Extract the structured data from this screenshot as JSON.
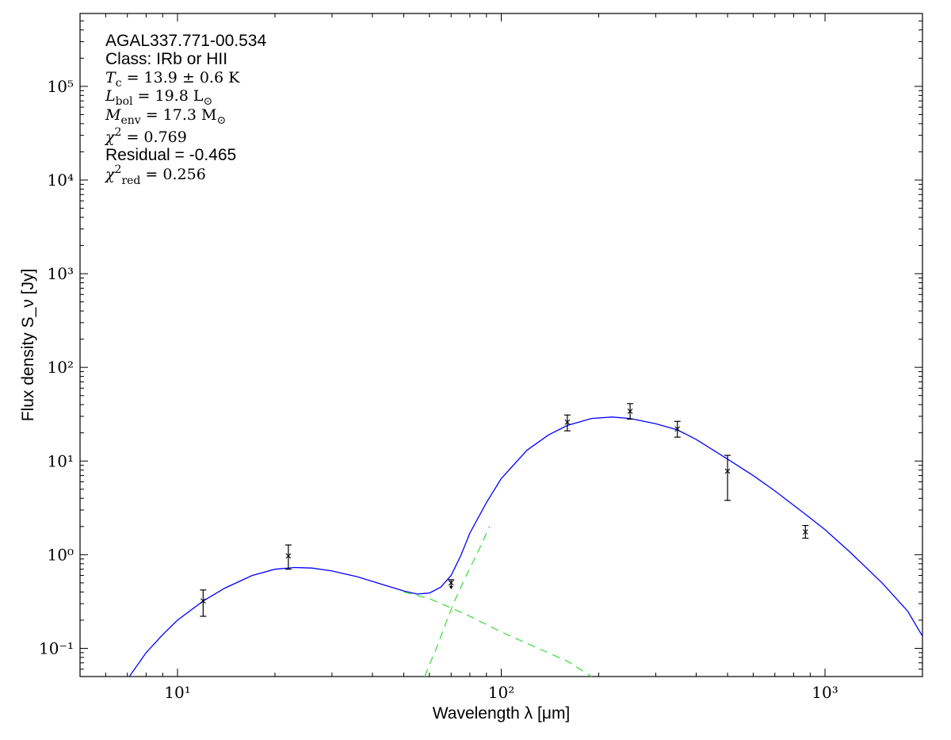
{
  "chart_data": {
    "type": "scatter",
    "xlabel": "Wavelength λ [μm]",
    "ylabel": "Flux density S_ν [Jy]",
    "x_scale": "log",
    "y_scale": "log",
    "xlim": [
      5,
      2000
    ],
    "ylim": [
      0.05,
      600000
    ],
    "grid": false,
    "x_ticks": [
      {
        "value": 10,
        "label": "10¹"
      },
      {
        "value": 100,
        "label": "10²"
      },
      {
        "value": 1000,
        "label": "10³"
      }
    ],
    "y_ticks": [
      {
        "value": 0.1,
        "label": "10⁻¹"
      },
      {
        "value": 1,
        "label": "10⁰"
      },
      {
        "value": 10,
        "label": "10¹"
      },
      {
        "value": 100,
        "label": "10²"
      },
      {
        "value": 1000,
        "label": "10³"
      },
      {
        "value": 10000,
        "label": "10⁴"
      },
      {
        "value": 100000,
        "label": "10⁵"
      }
    ],
    "annotations": [
      {
        "text": "AGAL337.771-00.534",
        "style": "sans"
      },
      {
        "text": "Class: IRb or HII",
        "style": "sans"
      },
      {
        "text": "T_c = 13.9 ± 0.6 K",
        "style": "math"
      },
      {
        "text": "L_bol = 19.8 L_⊙",
        "style": "math"
      },
      {
        "text": "M_env = 17.3 M_⊙",
        "style": "math"
      },
      {
        "text": "χ² = 0.769",
        "style": "math"
      },
      {
        "text": "Residual = -0.465",
        "style": "sans"
      },
      {
        "text": "χ²_red = 0.256",
        "style": "math"
      }
    ],
    "series": [
      {
        "kind": "points",
        "marker": "x",
        "color": "#000000",
        "points": [
          {
            "x": 12,
            "y": 0.32,
            "yerr_low": 0.1,
            "yerr_high": 0.1
          },
          {
            "x": 22,
            "y": 0.97,
            "yerr_low": 0.27,
            "yerr_high": 0.3
          },
          {
            "x": 70,
            "y": 0.5,
            "upper_limit": true
          },
          {
            "x": 160,
            "y": 26,
            "yerr_low": 5,
            "yerr_high": 5
          },
          {
            "x": 250,
            "y": 34,
            "yerr_low": 6,
            "yerr_high": 7
          },
          {
            "x": 350,
            "y": 22,
            "yerr_low": 4,
            "yerr_high": 4.5
          },
          {
            "x": 500,
            "y": 7.8,
            "yerr_low": 4,
            "yerr_high": 3.7
          },
          {
            "x": 870,
            "y": 1.75,
            "yerr_low": 0.25,
            "yerr_high": 0.3
          }
        ]
      },
      {
        "kind": "line",
        "color": "#0000ff",
        "dashed": false,
        "points": [
          [
            7.1,
            0.05
          ],
          [
            8,
            0.09
          ],
          [
            9,
            0.14
          ],
          [
            10,
            0.2
          ],
          [
            12,
            0.32
          ],
          [
            14,
            0.44
          ],
          [
            17,
            0.6
          ],
          [
            20,
            0.7
          ],
          [
            23,
            0.73
          ],
          [
            26,
            0.72
          ],
          [
            30,
            0.67
          ],
          [
            36,
            0.58
          ],
          [
            43,
            0.48
          ],
          [
            50,
            0.41
          ],
          [
            55,
            0.38
          ],
          [
            60,
            0.39
          ],
          [
            65,
            0.45
          ],
          [
            70,
            0.6
          ],
          [
            75,
            0.98
          ],
          [
            80,
            1.7
          ],
          [
            90,
            3.6
          ],
          [
            100,
            6.5
          ],
          [
            120,
            13
          ],
          [
            140,
            19
          ],
          [
            160,
            24
          ],
          [
            190,
            28.5
          ],
          [
            220,
            29.5
          ],
          [
            250,
            28.5
          ],
          [
            300,
            25
          ],
          [
            350,
            21.5
          ],
          [
            400,
            17
          ],
          [
            500,
            10.5
          ],
          [
            600,
            7
          ],
          [
            700,
            4.8
          ],
          [
            870,
            2.7
          ],
          [
            1000,
            1.85
          ],
          [
            1200,
            1.05
          ],
          [
            1500,
            0.5
          ],
          [
            1800,
            0.25
          ],
          [
            2000,
            0.135
          ]
        ]
      },
      {
        "kind": "line",
        "color": "#44dd44",
        "dashed": true,
        "points": [
          [
            50,
            0.4
          ],
          [
            60,
            0.34
          ],
          [
            70,
            0.27
          ],
          [
            80,
            0.22
          ],
          [
            100,
            0.15
          ],
          [
            130,
            0.1
          ],
          [
            160,
            0.073
          ],
          [
            190,
            0.05
          ]
        ]
      },
      {
        "kind": "line",
        "color": "#44dd44",
        "dashed": true,
        "points": [
          [
            58,
            0.05
          ],
          [
            63,
            0.1
          ],
          [
            68,
            0.2
          ],
          [
            72,
            0.33
          ],
          [
            78,
            0.6
          ],
          [
            85,
            1.1
          ],
          [
            92,
            2.0
          ]
        ]
      }
    ]
  }
}
